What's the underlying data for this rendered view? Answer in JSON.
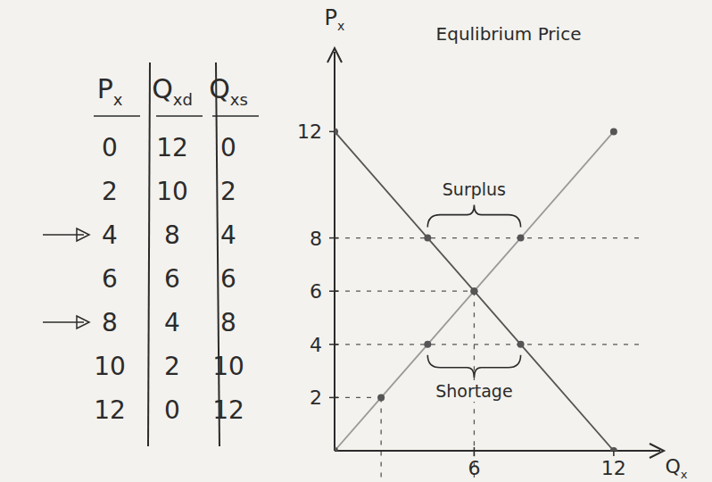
{
  "chart_data": {
    "type": "line",
    "title": "Equlibrium Price",
    "x_label": "Qx",
    "y_label": "Px",
    "xlim": [
      0,
      14
    ],
    "ylim": [
      0,
      15
    ],
    "xticks": [
      6,
      12
    ],
    "yticks": [
      2,
      4,
      6,
      8,
      12
    ],
    "series": [
      {
        "color": "#555555",
        "marker": "dot",
        "x": [
          0,
          4,
          6,
          8,
          12
        ],
        "values": [
          12,
          8,
          6,
          4,
          0
        ]
      },
      {
        "color": "#9a9a9a",
        "marker": "dot",
        "x": [
          0,
          2,
          4,
          6,
          8,
          12
        ],
        "values": [
          0,
          2,
          4,
          6,
          8,
          12
        ]
      }
    ],
    "annotations": [
      {
        "text": "Surplus",
        "y": 8,
        "x_from": 4,
        "x_to": 8,
        "side": "above"
      },
      {
        "text": "Shortage",
        "y": 4,
        "x_from": 4,
        "x_to": 8,
        "side": "below"
      }
    ],
    "guides": [
      {
        "x": 6,
        "y": 6
      },
      {
        "x": 2,
        "y": 2
      }
    ]
  },
  "table": {
    "headers": [
      "Px",
      "Qxd",
      "Qxs"
    ],
    "rows": [
      [
        0,
        12,
        0
      ],
      [
        2,
        10,
        2
      ],
      [
        4,
        8,
        4
      ],
      [
        6,
        6,
        6
      ],
      [
        8,
        4,
        8
      ],
      [
        10,
        2,
        10
      ],
      [
        12,
        0,
        12
      ]
    ],
    "arrow_prices": [
      4,
      8
    ]
  }
}
